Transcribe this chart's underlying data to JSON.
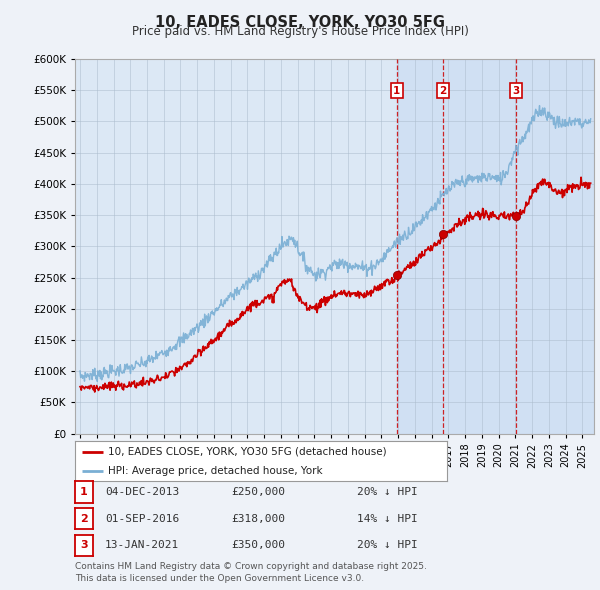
{
  "title": "10, EADES CLOSE, YORK, YO30 5FG",
  "subtitle": "Price paid vs. HM Land Registry's House Price Index (HPI)",
  "hpi_color": "#7aafd4",
  "price_color": "#cc0000",
  "background_color": "#eef2f8",
  "plot_bg_color": "#dce8f5",
  "shade_bg_color": "#c8dcf0",
  "ylim": [
    0,
    600000
  ],
  "yticks": [
    0,
    50000,
    100000,
    150000,
    200000,
    250000,
    300000,
    350000,
    400000,
    450000,
    500000,
    550000,
    600000
  ],
  "xlim_left": 1994.7,
  "xlim_right": 2025.7,
  "sales": [
    {
      "label": "1",
      "date": "04-DEC-2013",
      "price": 250000,
      "pct": "20%",
      "x_year": 2013.92
    },
    {
      "label": "2",
      "date": "01-SEP-2016",
      "price": 318000,
      "pct": "14%",
      "x_year": 2016.67
    },
    {
      "label": "3",
      "date": "13-JAN-2021",
      "price": 350000,
      "pct": "20%",
      "x_year": 2021.04
    }
  ],
  "legend_entries": [
    "10, EADES CLOSE, YORK, YO30 5FG (detached house)",
    "HPI: Average price, detached house, York"
  ],
  "footer": "Contains HM Land Registry data © Crown copyright and database right 2025.\nThis data is licensed under the Open Government Licence v3.0.",
  "hpi_anchors_x": [
    1995.0,
    1996.0,
    1997.0,
    1998.0,
    1999.0,
    2000.0,
    2001.0,
    2002.0,
    2003.0,
    2004.0,
    2005.0,
    2006.0,
    2007.0,
    2007.7,
    2008.5,
    2009.0,
    2009.5,
    2010.0,
    2010.5,
    2011.0,
    2011.5,
    2012.0,
    2012.5,
    2013.0,
    2013.5,
    2014.0,
    2014.5,
    2015.0,
    2015.5,
    2016.0,
    2016.5,
    2017.0,
    2017.5,
    2018.0,
    2018.5,
    2019.0,
    2019.5,
    2020.0,
    2020.5,
    2021.0,
    2021.5,
    2022.0,
    2022.5,
    2023.0,
    2023.5,
    2024.0,
    2024.5,
    2025.0,
    2025.5
  ],
  "hpi_anchors_y": [
    92000,
    95000,
    100000,
    105000,
    115000,
    130000,
    148000,
    170000,
    195000,
    220000,
    240000,
    265000,
    300000,
    315000,
    270000,
    255000,
    258000,
    268000,
    273000,
    272000,
    268000,
    265000,
    268000,
    278000,
    295000,
    310000,
    320000,
    330000,
    345000,
    360000,
    375000,
    390000,
    400000,
    405000,
    408000,
    410000,
    412000,
    405000,
    420000,
    455000,
    475000,
    500000,
    520000,
    510000,
    498000,
    495000,
    502000,
    497000,
    500000
  ],
  "price_anchors_x": [
    1995.0,
    1996.0,
    1997.0,
    1998.0,
    1999.0,
    2000.0,
    2001.0,
    2002.0,
    2003.0,
    2004.0,
    2005.0,
    2005.5,
    2006.0,
    2006.5,
    2007.0,
    2007.5,
    2008.0,
    2008.5,
    2009.0,
    2009.5,
    2010.0,
    2010.5,
    2011.0,
    2011.5,
    2012.0,
    2012.5,
    2013.0,
    2013.5,
    2013.92,
    2014.0,
    2014.5,
    2015.0,
    2015.5,
    2016.0,
    2016.5,
    2016.67,
    2017.0,
    2017.5,
    2018.0,
    2018.5,
    2019.0,
    2019.5,
    2020.0,
    2020.5,
    2021.04,
    2021.5,
    2022.0,
    2022.5,
    2023.0,
    2023.5,
    2024.0,
    2024.5,
    2025.0,
    2025.5
  ],
  "price_anchors_y": [
    75000,
    74000,
    76000,
    78000,
    82000,
    90000,
    103000,
    125000,
    150000,
    175000,
    200000,
    210000,
    215000,
    218000,
    240000,
    248000,
    218000,
    205000,
    202000,
    210000,
    220000,
    225000,
    225000,
    222000,
    220000,
    228000,
    238000,
    245000,
    250000,
    252000,
    265000,
    275000,
    288000,
    298000,
    310000,
    318000,
    325000,
    335000,
    342000,
    348000,
    350000,
    352000,
    345000,
    348000,
    350000,
    355000,
    385000,
    405000,
    400000,
    385000,
    390000,
    395000,
    398000,
    400000
  ]
}
